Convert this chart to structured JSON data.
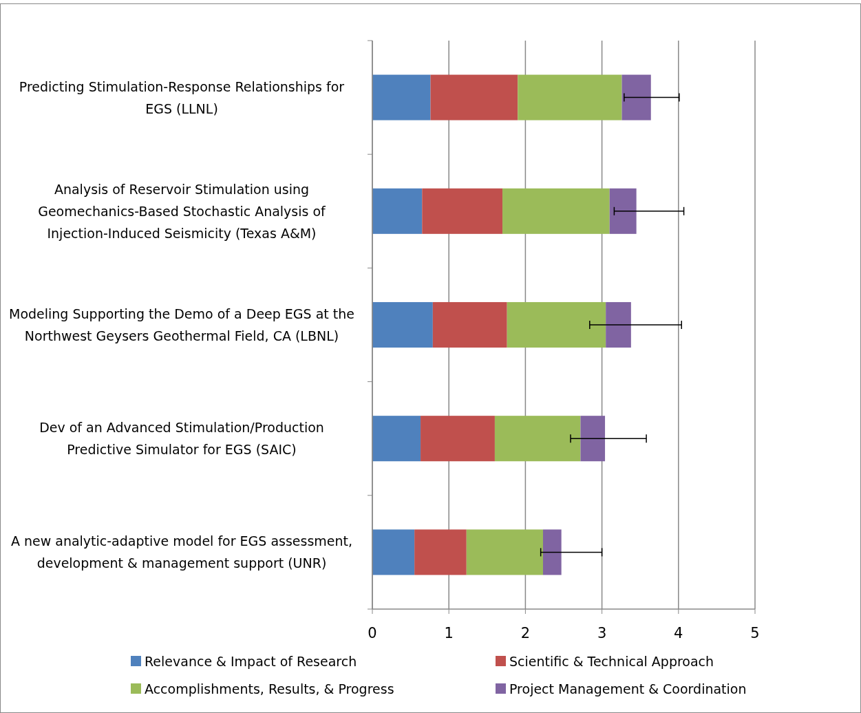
{
  "chart_data": {
    "type": "bar",
    "orientation": "horizontal",
    "stacked": true,
    "categories": [
      "Predicting Stimulation-Response Relationships for EGS (LLNL)",
      "Analysis of Reservoir Stimulation using Geomechanics-Based Stochastic Analysis of Injection-Induced Seismicity (Texas A&M)",
      "Modeling Supporting the Demo of a Deep EGS at the Northwest Geysers Geothermal Field, CA (LBNL)",
      "Dev of an Advanced Stimulation/Production Predictive Simulator for EGS (SAIC)",
      "A new analytic-adaptive model for EGS assessment, development & management support (UNR)"
    ],
    "series": [
      {
        "name": "Relevance & Impact of Research",
        "color": "#4f81bd",
        "values": [
          0.76,
          0.65,
          0.79,
          0.63,
          0.55
        ]
      },
      {
        "name": "Scientific & Technical Approach",
        "color": "#c0504d",
        "values": [
          1.14,
          1.05,
          0.97,
          0.97,
          0.68
        ]
      },
      {
        "name": "Accomplishments, Results, & Progress",
        "color": "#9bbb59",
        "values": [
          1.36,
          1.4,
          1.29,
          1.12,
          1.0
        ]
      },
      {
        "name": "Project Management & Coordination",
        "color": "#8064a2",
        "values": [
          0.38,
          0.35,
          0.33,
          0.32,
          0.24
        ],
        "errors": [
          [
            3.29,
            4.01
          ],
          [
            3.16,
            4.07
          ],
          [
            2.84,
            4.04
          ],
          [
            2.59,
            3.58
          ],
          [
            2.2,
            3.0
          ]
        ]
      }
    ],
    "xlim": [
      0,
      5
    ],
    "xticks": [
      0,
      1,
      2,
      3,
      4,
      5
    ],
    "grid": "x",
    "legend": "bottom"
  }
}
